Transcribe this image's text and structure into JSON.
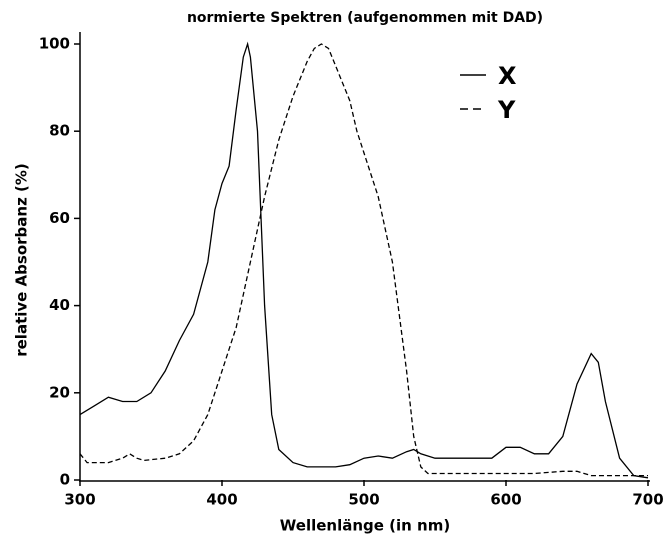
{
  "chart_data": {
    "type": "line",
    "title": "normierte Spektren (aufgenommen mit DAD)",
    "x_label": "Wellenlänge (in nm)",
    "y_label": "relative Absorbanz (%)",
    "xlim": [
      300,
      700
    ],
    "ylim": [
      0,
      100
    ],
    "xticks": [
      300,
      400,
      500,
      600,
      700
    ],
    "yticks": [
      0,
      20,
      40,
      60,
      80,
      100
    ],
    "legend": "upper right",
    "series": [
      {
        "name": "X",
        "color": "#000000",
        "style": "solid",
        "x": [
          300,
          310,
          320,
          330,
          340,
          350,
          360,
          370,
          380,
          390,
          395,
          400,
          405,
          410,
          415,
          418,
          420,
          425,
          430,
          435,
          440,
          450,
          460,
          470,
          480,
          490,
          500,
          510,
          520,
          530,
          535,
          540,
          550,
          560,
          570,
          580,
          590,
          600,
          610,
          620,
          630,
          640,
          650,
          660,
          665,
          670,
          680,
          690,
          700
        ],
        "values": [
          15,
          17,
          19,
          18,
          18,
          20,
          25,
          32,
          38,
          50,
          62,
          68,
          72,
          85,
          97,
          100,
          97,
          80,
          40,
          15,
          7,
          4,
          3,
          3,
          3,
          3.5,
          5,
          5.5,
          5,
          6.5,
          7,
          6,
          5,
          5,
          5,
          5,
          5,
          7.5,
          7.5,
          6,
          6,
          10,
          22,
          29,
          27,
          18,
          5,
          1,
          0.5
        ]
      },
      {
        "name": "Y",
        "color": "#000000",
        "style": "dashed",
        "x": [
          300,
          305,
          320,
          330,
          335,
          340,
          345,
          360,
          370,
          380,
          390,
          400,
          410,
          420,
          430,
          440,
          450,
          460,
          465,
          470,
          475,
          480,
          490,
          495,
          500,
          510,
          520,
          530,
          535,
          540,
          545,
          550,
          600,
          620,
          640,
          650,
          660,
          700
        ],
        "values": [
          6,
          4,
          4,
          5,
          6,
          5,
          4.5,
          5,
          6,
          9,
          15,
          25,
          35,
          50,
          65,
          78,
          88,
          96,
          99,
          100,
          99,
          95,
          87,
          80,
          75,
          65,
          50,
          25,
          10,
          3,
          1.5,
          1.5,
          1.5,
          1.5,
          2,
          2,
          1,
          1
        ]
      }
    ]
  }
}
